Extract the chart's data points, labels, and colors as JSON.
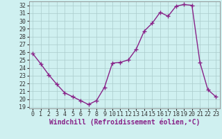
{
  "x": [
    0,
    1,
    2,
    3,
    4,
    5,
    6,
    7,
    8,
    9,
    10,
    11,
    12,
    13,
    14,
    15,
    16,
    17,
    18,
    19,
    20,
    21,
    22,
    23
  ],
  "y": [
    25.8,
    24.5,
    23.1,
    21.9,
    20.8,
    20.3,
    19.8,
    19.3,
    19.8,
    21.5,
    24.6,
    24.7,
    25.0,
    26.4,
    28.7,
    29.7,
    31.1,
    30.6,
    31.9,
    32.1,
    32.0,
    24.7,
    21.2,
    20.3
  ],
  "line_color": "#882288",
  "marker": "+",
  "marker_size": 4,
  "marker_linewidth": 1.0,
  "background_color": "#cff0f0",
  "grid_color": "#aacccc",
  "xlabel": "Windchill (Refroidissement éolien,°C)",
  "ylim": [
    18.8,
    32.5
  ],
  "xlim": [
    -0.5,
    23.5
  ],
  "yticks": [
    19,
    20,
    21,
    22,
    23,
    24,
    25,
    26,
    27,
    28,
    29,
    30,
    31,
    32
  ],
  "xticks": [
    0,
    1,
    2,
    3,
    4,
    5,
    6,
    7,
    8,
    9,
    10,
    11,
    12,
    13,
    14,
    15,
    16,
    17,
    18,
    19,
    20,
    21,
    22,
    23
  ],
  "tick_fontsize": 6,
  "xlabel_fontsize": 7,
  "line_width": 1.0
}
